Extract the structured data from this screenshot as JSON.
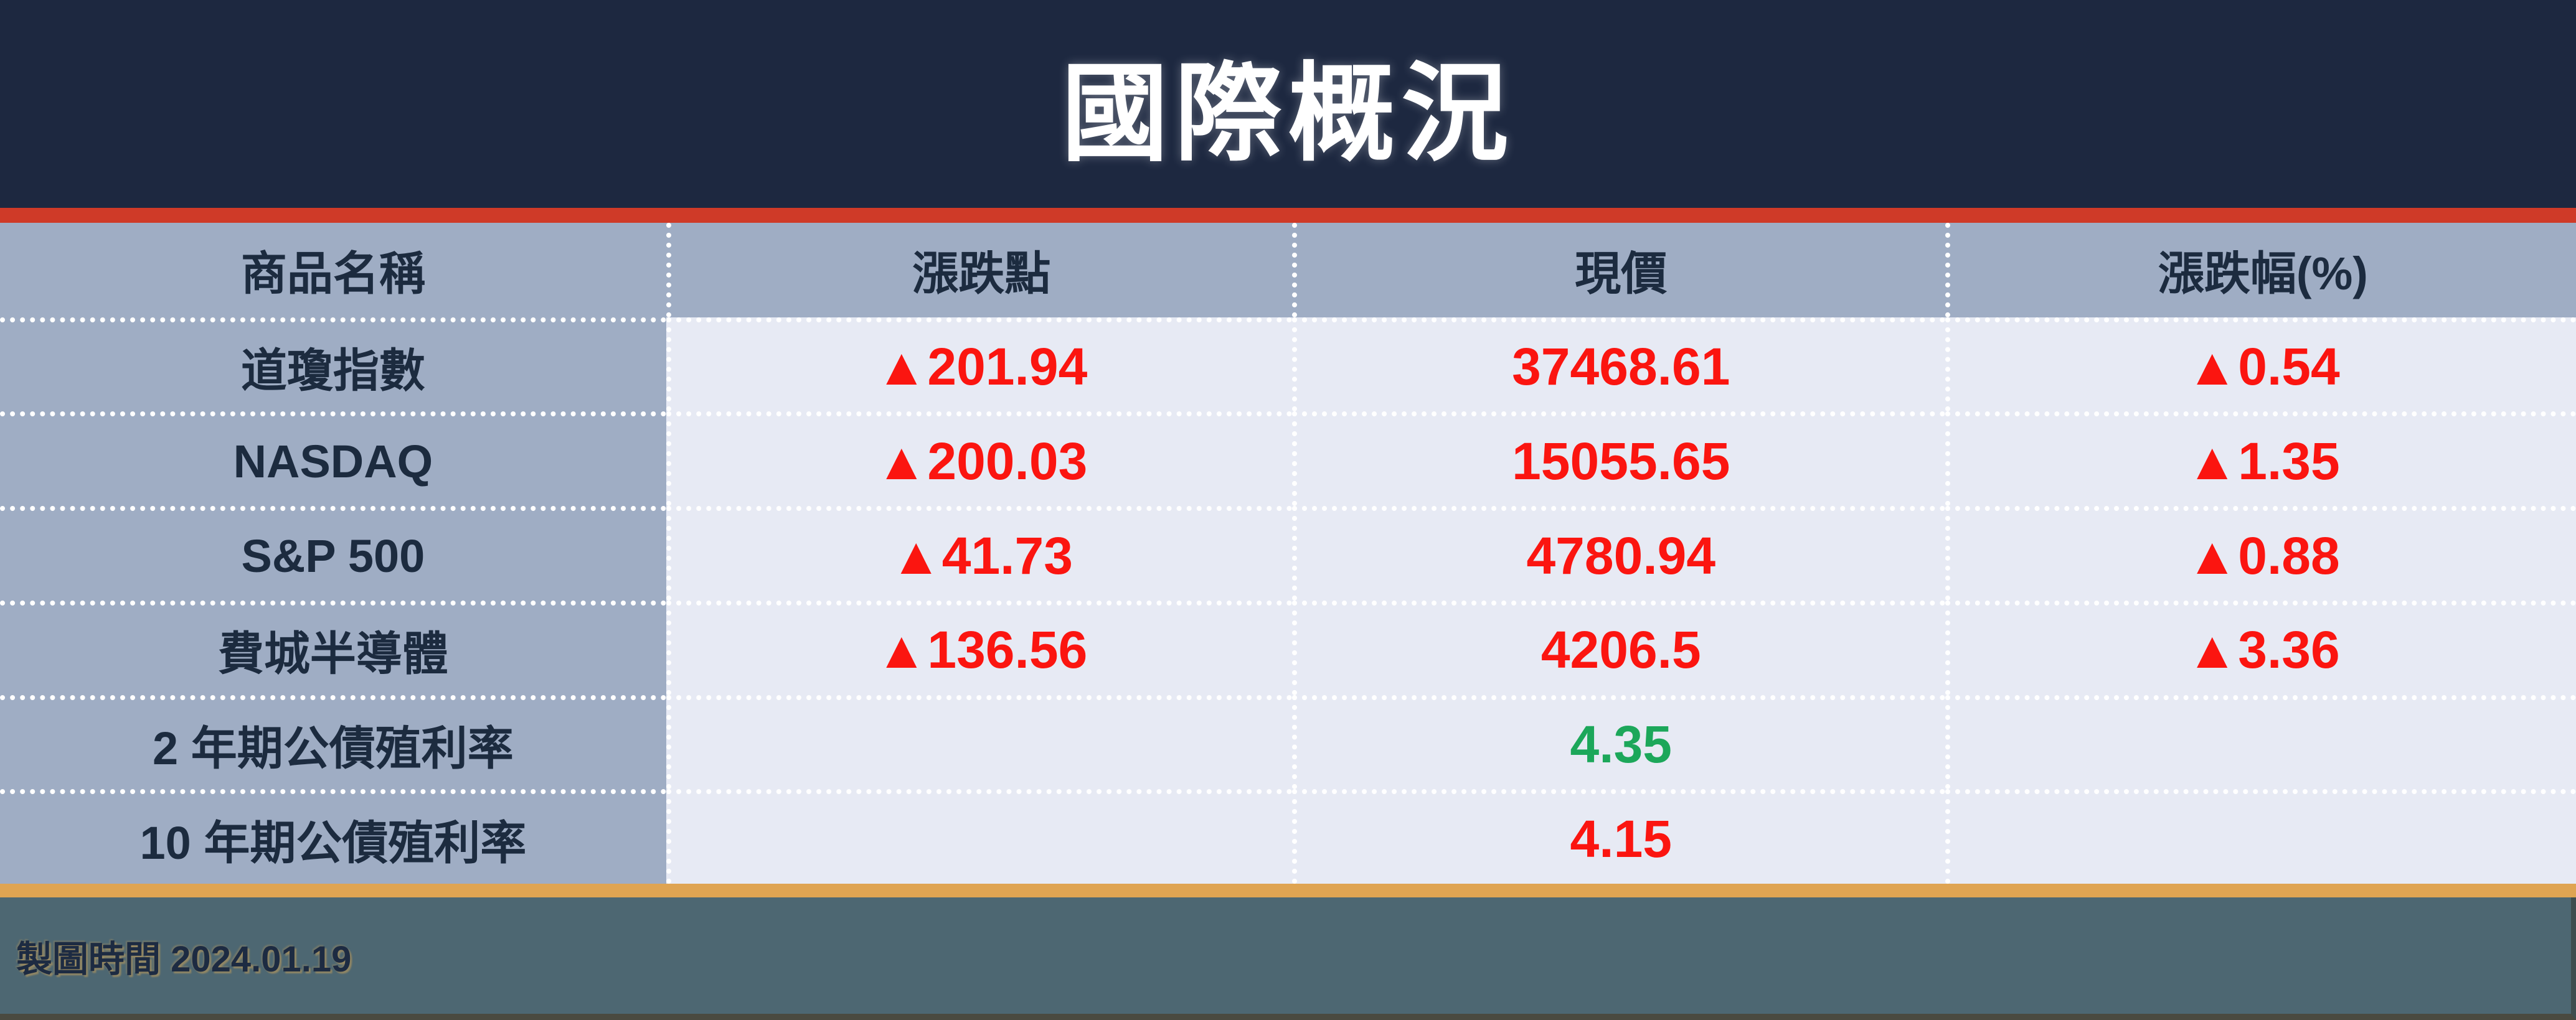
{
  "title": "國際概況",
  "chart_data": {
    "type": "table",
    "title": "國際概況",
    "columns": [
      "商品名稱",
      "漲跌點",
      "現價",
      "漲跌幅(%)"
    ],
    "rows": [
      [
        "道瓊指數",
        "▲201.94",
        "37468.61",
        "▲0.54"
      ],
      [
        "NASDAQ",
        "▲200.03",
        "15055.65",
        "▲1.35"
      ],
      [
        "S&P 500",
        "▲41.73",
        "4780.94",
        "▲0.88"
      ],
      [
        "費城半導體",
        "▲136.56",
        "4206.5",
        "▲3.36"
      ],
      [
        "2 年期公債殖利率",
        "",
        "4.35",
        ""
      ],
      [
        "10 年期公債殖利率",
        "",
        "4.15",
        ""
      ]
    ],
    "value_colors": [
      [
        "navy",
        "red",
        "red",
        "red"
      ],
      [
        "navy",
        "red",
        "red",
        "red"
      ],
      [
        "navy",
        "red",
        "red",
        "red"
      ],
      [
        "navy",
        "red",
        "red",
        "red"
      ],
      [
        "navy",
        "",
        "green",
        ""
      ],
      [
        "navy",
        "",
        "red",
        ""
      ]
    ],
    "legend_position": "none",
    "grid": "dotted-white"
  },
  "footer": {
    "caption": "製圖時間 2024.01.19"
  },
  "colors": {
    "title_bg": "#1d2840",
    "title_text": "#ffffff",
    "accent_red_bar": "#cf3a28",
    "accent_orange_bar": "#dfa452",
    "header_bg": "#9fadc4",
    "name_col_bg": "#9fadc4",
    "data_cell_bg": "#e7eaf4",
    "up_red": "#fb1510",
    "yield_green": "#1ca75a",
    "label_navy": "#1c2b3f",
    "footer_bg": "#4d6772",
    "footer_text": "#1d2b42",
    "divider": "#ffffff"
  }
}
